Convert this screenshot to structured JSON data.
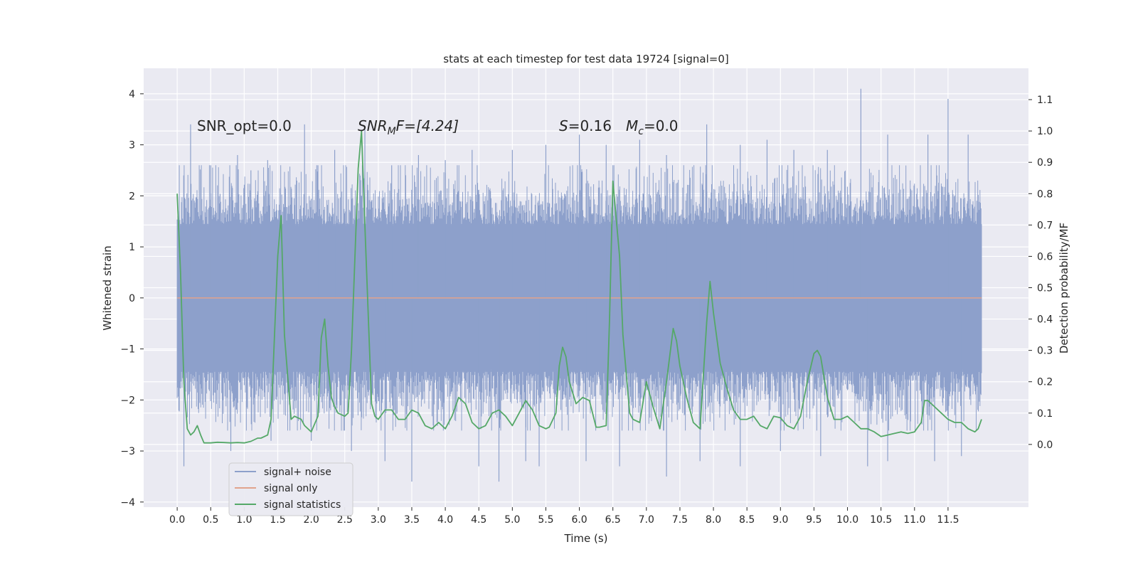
{
  "chart_data": {
    "type": "line",
    "title": "stats at each timestep for test data 19724 [signal=0]",
    "xlabel": "Time (s)",
    "ylabel_left": "Whitened strain",
    "ylabel_right": "Detection probability/MF",
    "xlim": [
      -0.5,
      12.7
    ],
    "ylim_left": [
      -4.1,
      4.5
    ],
    "ylim_right": [
      -0.2,
      1.2
    ],
    "x_ticks": [
      0.0,
      0.5,
      1.0,
      1.5,
      2.0,
      2.5,
      3.0,
      3.5,
      4.0,
      4.5,
      5.0,
      5.5,
      6.0,
      6.5,
      7.0,
      7.5,
      8.0,
      8.5,
      9.0,
      9.5,
      10.0,
      10.5,
      11.0,
      11.5
    ],
    "x_tick_labels": [
      "0.0",
      "0.5",
      "1.0",
      "1.5",
      "2.0",
      "2.5",
      "3.0",
      "3.5",
      "4.0",
      "4.5",
      "5.0",
      "5.5",
      "6.0",
      "6.5",
      "7.0",
      "7.5",
      "8.0",
      "8.5",
      "9.0",
      "9.5",
      "10.0",
      "10.5",
      "11.0",
      "11.5"
    ],
    "y_left_ticks": [
      -4,
      -3,
      -2,
      -1,
      0,
      1,
      2,
      3,
      4
    ],
    "y_left_tick_labels": [
      "−4",
      "−3",
      "−2",
      "−1",
      "0",
      "1",
      "2",
      "3",
      "4"
    ],
    "y_right_ticks": [
      0.0,
      0.1,
      0.2,
      0.3,
      0.4,
      0.5,
      0.6,
      0.7,
      0.8,
      0.9,
      1.0,
      1.1
    ],
    "y_right_tick_labels": [
      "0.0",
      "0.1",
      "0.2",
      "0.3",
      "0.4",
      "0.5",
      "0.6",
      "0.7",
      "0.8",
      "0.9",
      "1.0",
      "1.1"
    ],
    "annotations": {
      "snr_opt": "SNR_opt=0.0",
      "snr_mf_main": "SNR",
      "snr_mf_sub": "M",
      "snr_mf_rest": "F=[4.24]",
      "s_var": "S",
      "s_val": "=0.16",
      "mc_var": "M",
      "mc_sub": "c",
      "mc_val": "=0.0"
    },
    "legend": [
      "signal+ noise",
      "signal only",
      "signal statistics"
    ],
    "noise_series": {
      "name": "signal+ noise",
      "t_range": [
        0.0,
        12.0
      ],
      "core_band": [
        -1.45,
        1.45
      ],
      "upper_peaks": [
        [
          0.2,
          3.4
        ],
        [
          0.5,
          2.6
        ],
        [
          0.9,
          2.8
        ],
        [
          1.1,
          2.5
        ],
        [
          1.35,
          2.7
        ],
        [
          1.9,
          3.4
        ],
        [
          2.1,
          2.6
        ],
        [
          2.35,
          2.9
        ],
        [
          2.8,
          3.3
        ],
        [
          3.2,
          2.6
        ],
        [
          3.6,
          2.8
        ],
        [
          4.0,
          2.7
        ],
        [
          4.4,
          2.9
        ],
        [
          5.0,
          2.9
        ],
        [
          5.5,
          3.0
        ],
        [
          6.0,
          3.2
        ],
        [
          6.4,
          3.0
        ],
        [
          6.9,
          3.1
        ],
        [
          7.3,
          2.8
        ],
        [
          7.9,
          3.4
        ],
        [
          8.4,
          3.0
        ],
        [
          8.8,
          3.1
        ],
        [
          9.2,
          2.9
        ],
        [
          9.7,
          2.9
        ],
        [
          10.2,
          4.1
        ],
        [
          10.6,
          3.2
        ],
        [
          11.2,
          3.2
        ],
        [
          11.5,
          3.9
        ],
        [
          11.8,
          3.2
        ]
      ],
      "lower_peaks": [
        [
          0.1,
          -3.3
        ],
        [
          0.8,
          -3.0
        ],
        [
          1.4,
          -2.8
        ],
        [
          2.0,
          -2.8
        ],
        [
          2.6,
          -3.0
        ],
        [
          3.1,
          -3.2
        ],
        [
          3.5,
          -3.6
        ],
        [
          4.5,
          -3.3
        ],
        [
          4.8,
          -3.6
        ],
        [
          5.2,
          -3.2
        ],
        [
          5.4,
          -3.3
        ],
        [
          6.1,
          -3.2
        ],
        [
          6.6,
          -3.3
        ],
        [
          7.3,
          -3.5
        ],
        [
          7.8,
          -3.2
        ],
        [
          8.4,
          -3.3
        ],
        [
          9.0,
          -3.0
        ],
        [
          9.6,
          -3.1
        ],
        [
          10.3,
          -3.3
        ],
        [
          10.6,
          -3.2
        ],
        [
          11.3,
          -3.2
        ],
        [
          11.7,
          -3.1
        ]
      ],
      "color": "#8da0cb"
    },
    "signal_only": {
      "name": "signal only",
      "value": 0.0,
      "color": "#e1a38c"
    },
    "stats_series": {
      "name": "signal statistics",
      "color": "#55a868",
      "x": [
        0.0,
        0.05,
        0.1,
        0.15,
        0.2,
        0.25,
        0.3,
        0.35,
        0.4,
        0.5,
        0.6,
        0.7,
        0.8,
        0.9,
        1.0,
        1.1,
        1.2,
        1.25,
        1.35,
        1.4,
        1.5,
        1.55,
        1.6,
        1.7,
        1.75,
        1.8,
        1.85,
        1.9,
        2.0,
        2.1,
        2.15,
        2.2,
        2.25,
        2.3,
        2.35,
        2.4,
        2.5,
        2.55,
        2.6,
        2.7,
        2.75,
        2.8,
        2.9,
        2.95,
        3.0,
        3.1,
        3.2,
        3.3,
        3.4,
        3.5,
        3.6,
        3.7,
        3.8,
        3.9,
        4.0,
        4.1,
        4.2,
        4.3,
        4.4,
        4.5,
        4.6,
        4.7,
        4.8,
        4.9,
        5.0,
        5.1,
        5.2,
        5.3,
        5.4,
        5.5,
        5.55,
        5.65,
        5.7,
        5.75,
        5.8,
        5.85,
        5.95,
        6.0,
        6.05,
        6.15,
        6.25,
        6.3,
        6.4,
        6.45,
        6.5,
        6.6,
        6.65,
        6.75,
        6.8,
        6.9,
        7.0,
        7.1,
        7.2,
        7.3,
        7.4,
        7.45,
        7.5,
        7.6,
        7.7,
        7.8,
        7.9,
        7.95,
        8.0,
        8.1,
        8.2,
        8.3,
        8.4,
        8.5,
        8.6,
        8.7,
        8.8,
        8.9,
        9.0,
        9.1,
        9.2,
        9.3,
        9.4,
        9.5,
        9.55,
        9.6,
        9.7,
        9.8,
        9.9,
        10.0,
        10.1,
        10.2,
        10.3,
        10.4,
        10.5,
        10.6,
        10.7,
        10.8,
        10.9,
        11.0,
        11.1,
        11.15,
        11.2,
        11.3,
        11.4,
        11.5,
        11.6,
        11.7,
        11.8,
        11.9,
        11.95,
        12.0
      ],
      "y": [
        0.8,
        0.55,
        0.2,
        0.05,
        0.03,
        0.04,
        0.06,
        0.03,
        0.005,
        0.005,
        0.007,
        0.006,
        0.005,
        0.006,
        0.005,
        0.01,
        0.02,
        0.02,
        0.03,
        0.08,
        0.6,
        0.73,
        0.35,
        0.08,
        0.09,
        0.085,
        0.08,
        0.06,
        0.04,
        0.09,
        0.34,
        0.4,
        0.25,
        0.15,
        0.12,
        0.1,
        0.09,
        0.1,
        0.3,
        0.88,
        1.0,
        0.7,
        0.13,
        0.09,
        0.08,
        0.11,
        0.11,
        0.08,
        0.08,
        0.11,
        0.1,
        0.06,
        0.05,
        0.07,
        0.05,
        0.09,
        0.15,
        0.13,
        0.07,
        0.05,
        0.06,
        0.1,
        0.11,
        0.09,
        0.06,
        0.1,
        0.14,
        0.11,
        0.06,
        0.05,
        0.055,
        0.1,
        0.25,
        0.31,
        0.28,
        0.2,
        0.13,
        0.14,
        0.15,
        0.14,
        0.055,
        0.055,
        0.06,
        0.4,
        0.84,
        0.6,
        0.35,
        0.1,
        0.08,
        0.07,
        0.2,
        0.12,
        0.05,
        0.2,
        0.37,
        0.33,
        0.25,
        0.15,
        0.07,
        0.05,
        0.39,
        0.52,
        0.42,
        0.26,
        0.18,
        0.11,
        0.08,
        0.08,
        0.09,
        0.06,
        0.05,
        0.09,
        0.085,
        0.06,
        0.05,
        0.09,
        0.2,
        0.29,
        0.3,
        0.28,
        0.15,
        0.08,
        0.08,
        0.09,
        0.07,
        0.05,
        0.05,
        0.04,
        0.025,
        0.03,
        0.035,
        0.04,
        0.035,
        0.04,
        0.07,
        0.14,
        0.14,
        0.12,
        0.1,
        0.08,
        0.07,
        0.07,
        0.05,
        0.04,
        0.05,
        0.08
      ]
    },
    "grid": true,
    "legend_position": "lower-left"
  }
}
